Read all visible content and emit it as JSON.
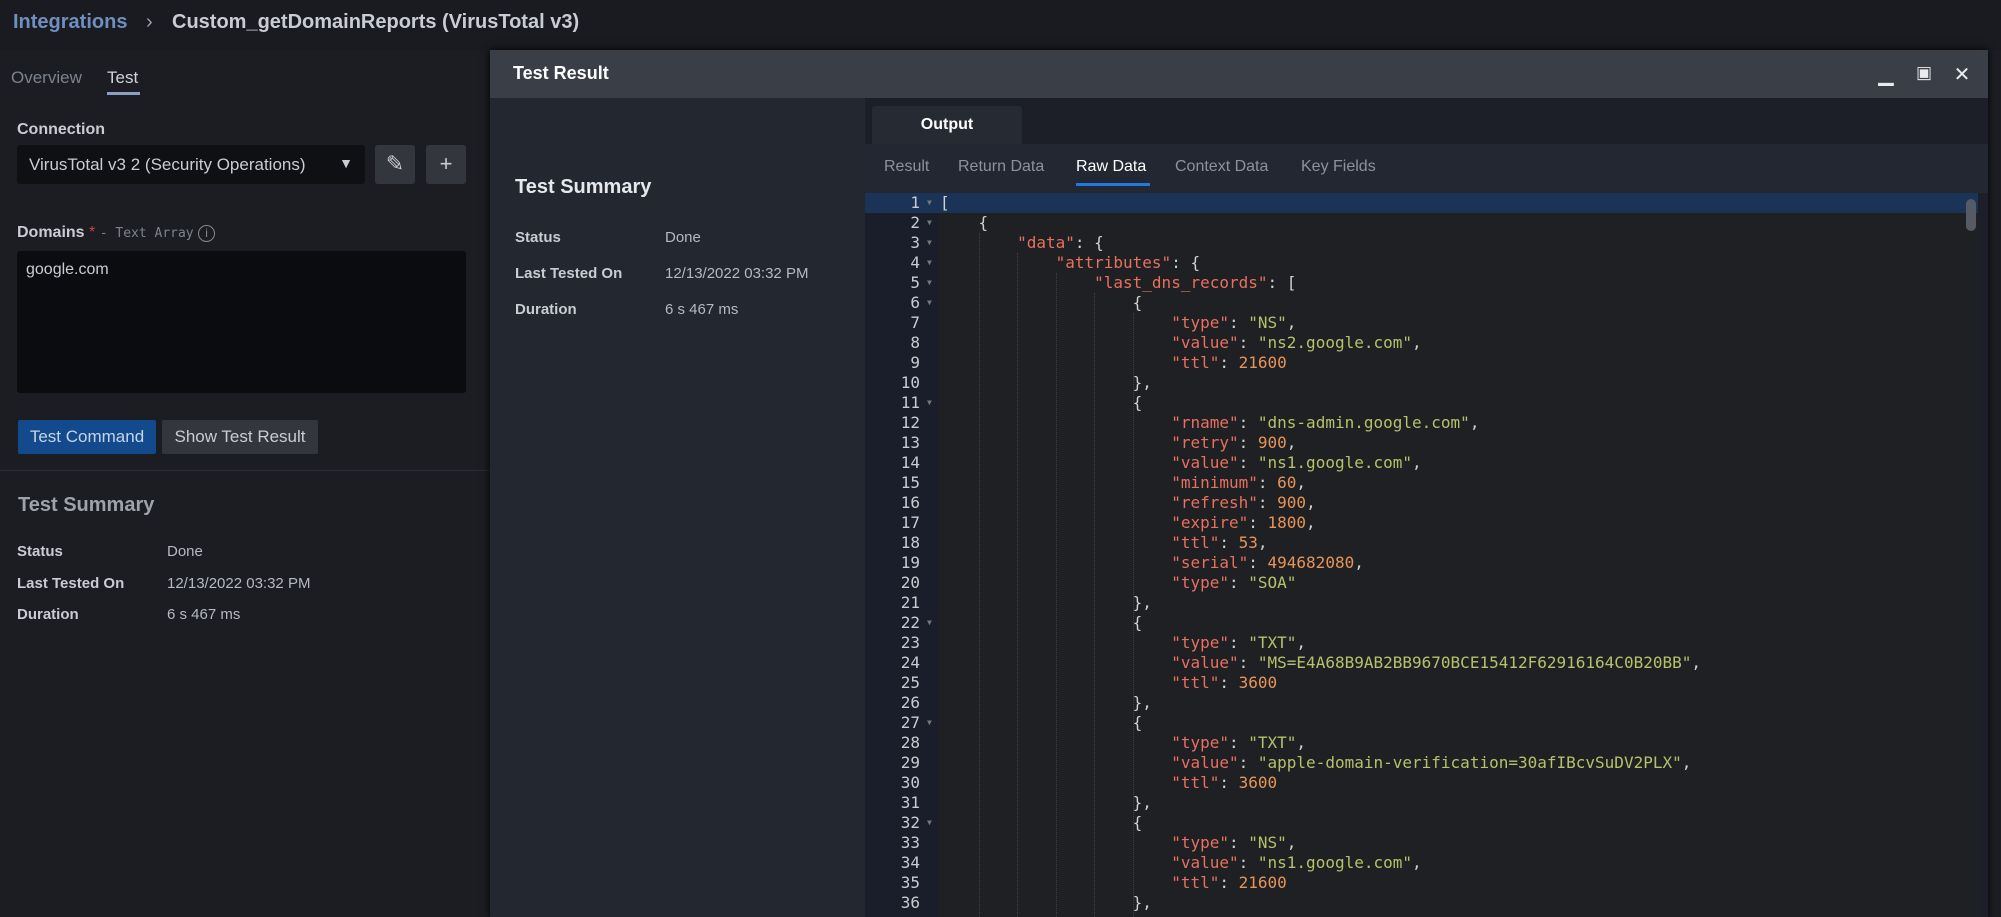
{
  "header": {
    "breadcrumb_root": "Integrations",
    "separator": "›",
    "current": "Custom_getDomainReports (VirusTotal v3)"
  },
  "left": {
    "tabs": [
      {
        "label": "Overview"
      },
      {
        "label": "Test",
        "active": true
      }
    ],
    "connection_label": "Connection",
    "connection_value": "VirusTotal v3 2 (Security Operations)",
    "domains_label": "Domains",
    "domains_required": "*",
    "domains_type": "- Text Array",
    "domains_value": "google.com",
    "test_button": "Test Command",
    "show_button": "Show Test Result",
    "summary_title": "Test Summary",
    "summary": [
      {
        "k": "Status",
        "v": "Done"
      },
      {
        "k": "Last Tested On",
        "v": "12/13/2022 03:32 PM"
      },
      {
        "k": "Duration",
        "v": "6 s 467 ms"
      }
    ]
  },
  "modal": {
    "title": "Test Result",
    "summary_title": "Test Summary",
    "summary": [
      {
        "k": "Status",
        "v": "Done"
      },
      {
        "k": "Last Tested On",
        "v": "12/13/2022 03:32 PM"
      },
      {
        "k": "Duration",
        "v": "6 s 467 ms"
      }
    ],
    "output_tab": "Output",
    "subtabs": [
      "Result",
      "Return Data",
      "Raw Data",
      "Context Data",
      "Key Fields"
    ],
    "active_subtab": "Raw Data",
    "accent": "#1f7ae0",
    "code_lines": [
      "[",
      "    {",
      "        \"data\": {",
      "            \"attributes\": {",
      "                \"last_dns_records\": [",
      "                    {",
      "                        \"type\": \"NS\",",
      "                        \"value\": \"ns2.google.com\",",
      "                        \"ttl\": 21600",
      "                    },",
      "                    {",
      "                        \"rname\": \"dns-admin.google.com\",",
      "                        \"retry\": 900,",
      "                        \"value\": \"ns1.google.com\",",
      "                        \"minimum\": 60,",
      "                        \"refresh\": 900,",
      "                        \"expire\": 1800,",
      "                        \"ttl\": 53,",
      "                        \"serial\": 494682080,",
      "                        \"type\": \"SOA\"",
      "                    },",
      "                    {",
      "                        \"type\": \"TXT\",",
      "                        \"value\": \"MS=E4A68B9AB2BB9670BCE15412F62916164C0B20BB\",",
      "                        \"ttl\": 3600",
      "                    },",
      "                    {",
      "                        \"type\": \"TXT\",",
      "                        \"value\": \"apple-domain-verification=30afIBcvSuDV2PLX\",",
      "                        \"ttl\": 3600",
      "                    },",
      "                    {",
      "                        \"type\": \"NS\",",
      "                        \"value\": \"ns1.google.com\",",
      "                        \"ttl\": 21600",
      "                    },"
    ],
    "fold_lines": [
      1,
      2,
      3,
      4,
      5,
      6,
      11,
      22,
      27,
      32
    ],
    "active_line": 1
  }
}
